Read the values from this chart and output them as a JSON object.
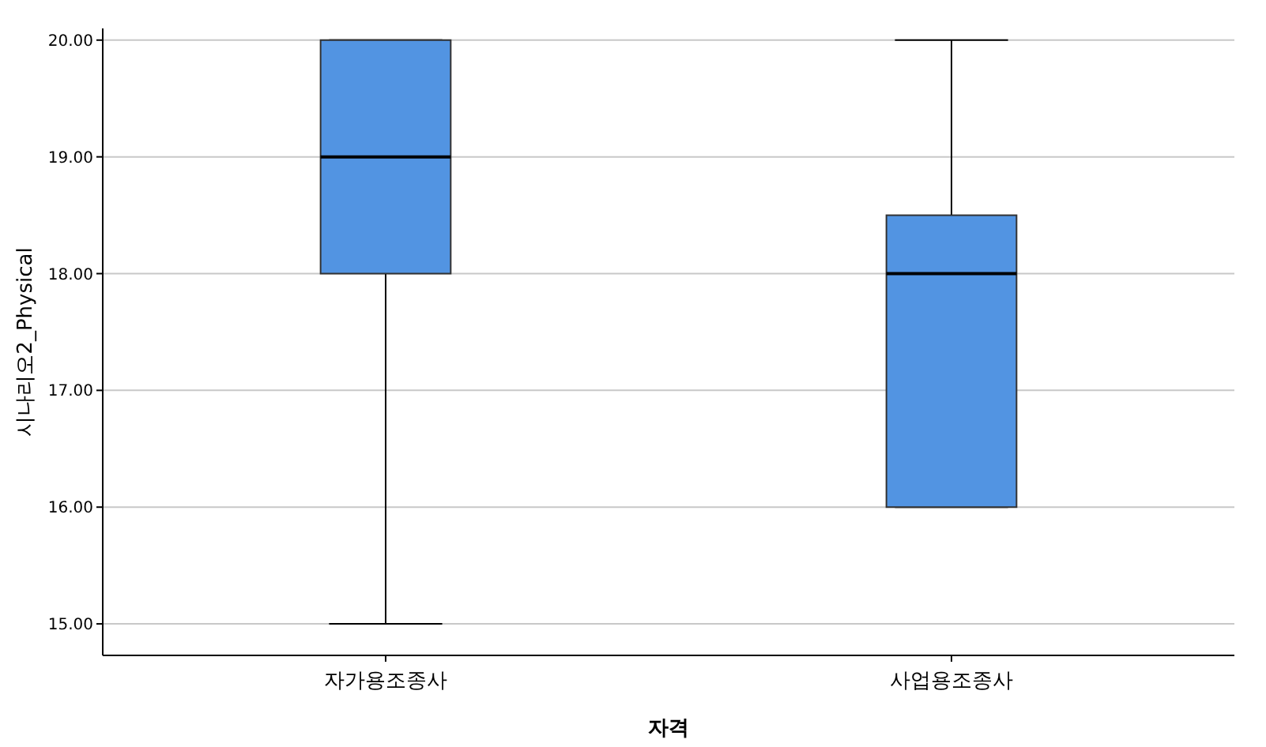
{
  "chart_data": {
    "type": "box",
    "xlabel": "자격",
    "ylabel": "시나리오2_Physical",
    "categories": [
      "자가용조종사",
      "사업용조종사"
    ],
    "boxes": [
      {
        "low": 15,
        "q1": 18,
        "median": 19,
        "q3": 20,
        "high": 20
      },
      {
        "low": 16,
        "q1": 16,
        "median": 18,
        "q3": 18.5,
        "high": 20
      }
    ],
    "color": "#5294e2",
    "ylim": [
      14.73,
      20.1
    ],
    "yticks": [
      {
        "value": 15,
        "label": "15.00"
      },
      {
        "value": 16,
        "label": "16.00"
      },
      {
        "value": 17,
        "label": "17.00"
      },
      {
        "value": 18,
        "label": "18.00"
      },
      {
        "value": 19,
        "label": "19.00"
      },
      {
        "value": 20,
        "label": "20.00"
      }
    ],
    "grid": "y"
  }
}
